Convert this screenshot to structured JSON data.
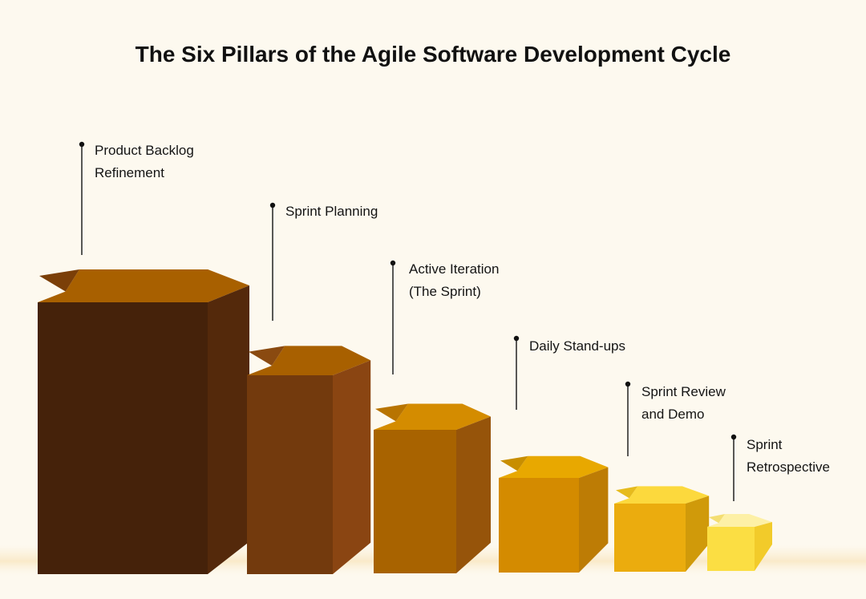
{
  "title": "The Six Pillars of the Agile Software Development Cycle",
  "pillars": [
    {
      "label_lines": [
        "Product Backlog",
        "Refinement"
      ],
      "front": "#45220a",
      "side": "#54290b",
      "top": "#a86000",
      "top_dark": "#7b3f08"
    },
    {
      "label_lines": [
        "Sprint Planning"
      ],
      "front": "#733a0d",
      "side": "#8a4512",
      "top": "#a86000",
      "top_dark": "#8a4a10"
    },
    {
      "label_lines": [
        "Active Iteration",
        "(The Sprint)"
      ],
      "front": "#a86300",
      "side": "#96540a",
      "top": "#d48c00",
      "top_dark": "#b87400"
    },
    {
      "label_lines": [
        "Daily Stand-ups"
      ],
      "front": "#d48b00",
      "side": "#bd7c05",
      "top": "#e8a800",
      "top_dark": "#c88e00"
    },
    {
      "label_lines": [
        "Sprint Review",
        "and Demo"
      ],
      "front": "#ebac0e",
      "side": "#d09a0a",
      "top": "#fcd93d",
      "top_dark": "#e6bb1d"
    },
    {
      "label_lines": [
        "Sprint",
        "Retrospective"
      ],
      "front": "#fbde43",
      "side": "#f2cb2a",
      "top": "#fdf0a6",
      "top_dark": "#f4de72"
    }
  ]
}
